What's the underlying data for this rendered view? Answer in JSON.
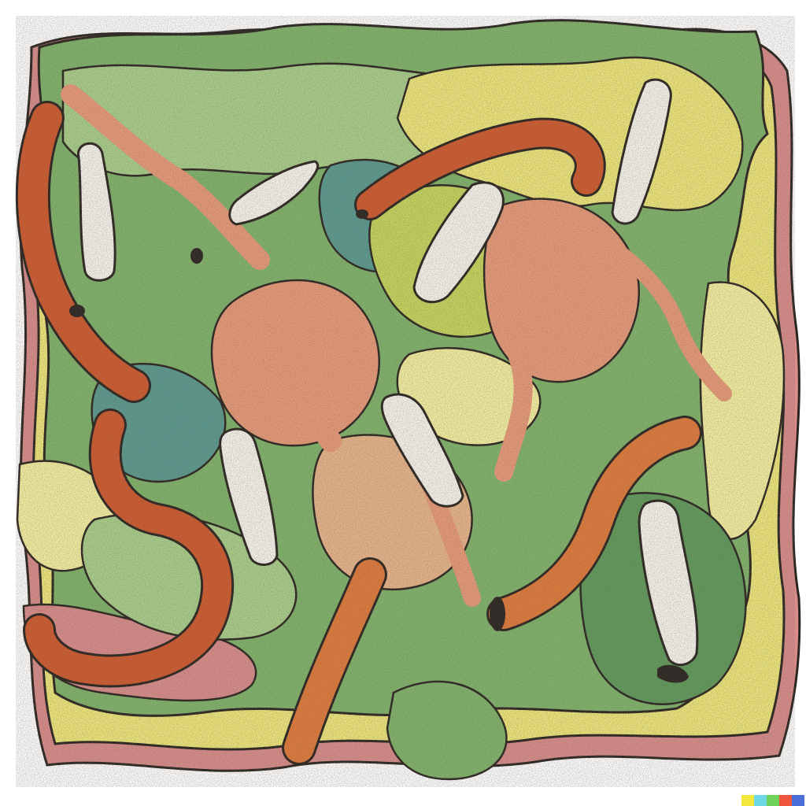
{
  "artwork": {
    "palette": {
      "background": "#ffffff",
      "light_green": "#a9cf8a",
      "mid_green": "#7fb46a",
      "dark_green": "#5f9a5a",
      "teal": "#5a9a8f",
      "yellow": "#eee77a",
      "pale_yellow": "#f4f0a0",
      "lime": "#c5d65c",
      "salmon": "#e89a78",
      "pink": "#d98c8a",
      "rust": "#cf5a2e",
      "orange": "#e07a3a",
      "tan": "#e8b58a",
      "white": "#f7f5ef",
      "ink": "#2a2420"
    },
    "watermark_colors": [
      "#f4e83c",
      "#6fd8e6",
      "#6fd25a",
      "#f0563e",
      "#4a6fd8"
    ]
  }
}
